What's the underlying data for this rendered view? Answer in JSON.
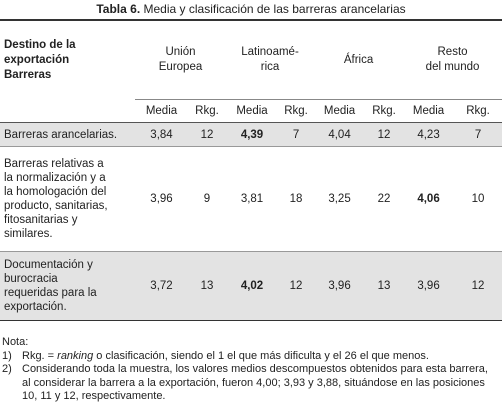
{
  "title": {
    "label": "Tabla 6.",
    "text": "Media y clasificación de las barreras arancelarias"
  },
  "table": {
    "corner": "Destino de la\nexportación\nBarreras",
    "groups": [
      "Unión\nEuropea",
      "Latinoamé-\nrica",
      "África",
      "Resto\ndel mundo"
    ],
    "subheaders": [
      "Media",
      "Rkg.",
      "Media",
      "Rkg.",
      "Media",
      "Rkg.",
      "Media",
      "Rkg."
    ],
    "rows": [
      {
        "label": "Barreras arancelarias.",
        "cells": [
          "3,84",
          "12",
          "4,39",
          "7",
          "4,04",
          "12",
          "4,23",
          "7"
        ]
      },
      {
        "label": "Barreras relativas a\nla normalización y a\nla homologación del\nproducto, sanitarias,\nfitosanitarias y\nsimilares.",
        "cells": [
          "3,96",
          "9",
          "3,81",
          "18",
          "3,25",
          "22",
          "4,06",
          "10"
        ]
      },
      {
        "label": "Documentación y\nburocracia\nrequeridas para la\nexportación.",
        "cells": [
          "3,72",
          "13",
          "4,02",
          "12",
          "3,96",
          "13",
          "3,96",
          "12"
        ]
      }
    ]
  },
  "notes": {
    "heading": "Nota:",
    "items": [
      {
        "number": "1)",
        "prefix": "Rkg. = ",
        "term": "ranking",
        "text": " o clasificación, siendo el 1 el que más dificulta y el 26 el que menos."
      },
      {
        "number": "2)",
        "text": "Considerando toda la muestra, los valores medios descompuestos obtenidos para esta barrera, al considerar la barrera a la exportación, fueron 4,00; 3,93 y 3,88, situándose en las posiciones 10, 11 y 12, respectivamente."
      }
    ]
  }
}
